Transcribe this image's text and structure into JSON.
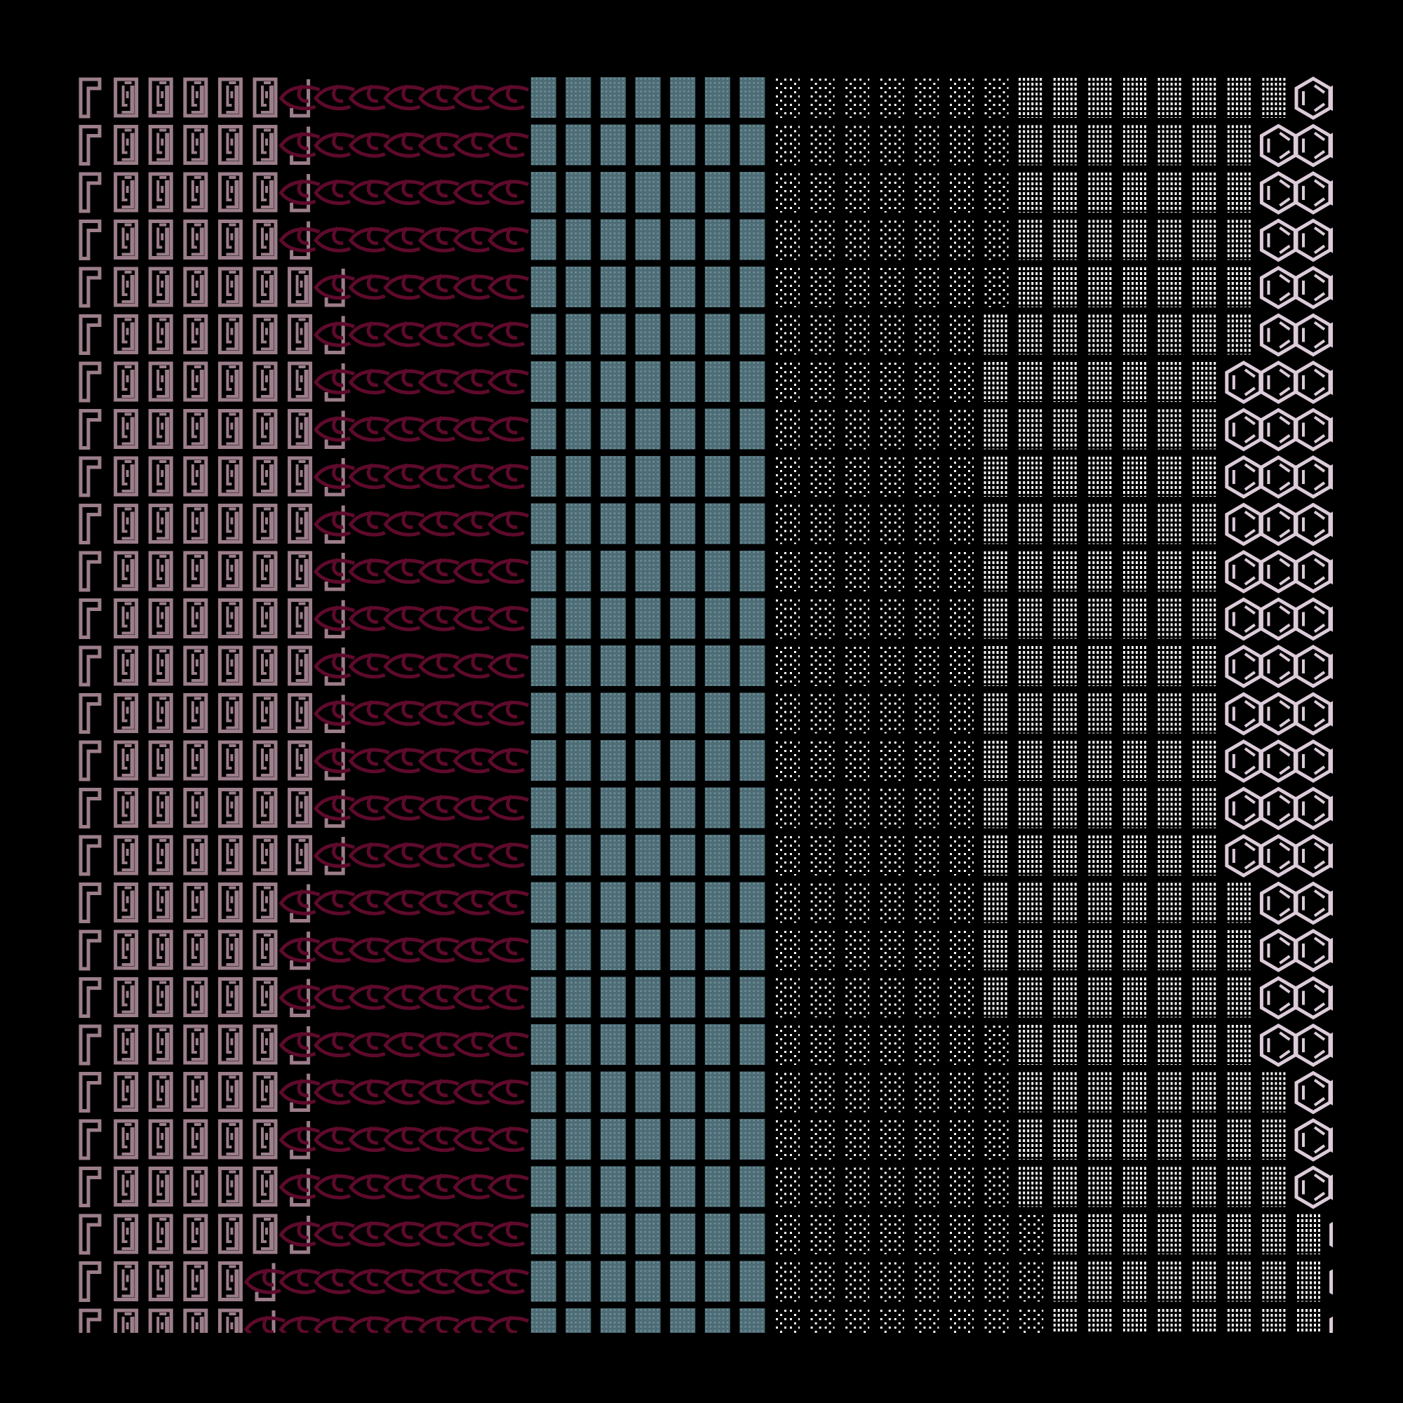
{
  "palette": {
    "background": "#000000",
    "frame_glyph": "#9c7e8b",
    "eye_glyph": "#5e0a2c",
    "teal_tile": "#4d6c76",
    "teal_dot": "#6f9097",
    "dot_glyph": "#ffffff",
    "hex_glyph": "#dccbd9"
  },
  "glyph_types": [
    "corner-frame",
    "maze-box",
    "hook",
    "eye",
    "teal-dotted-tile",
    "sparse-dots",
    "dense-dots",
    "hexagon"
  ],
  "grid": {
    "columns": 37,
    "teal_columns": 7,
    "rows": [
      {
        "boxes": 5,
        "sparse": 7,
        "hex_start": 35
      },
      {
        "boxes": 5,
        "sparse": 7,
        "hex_start": 34
      },
      {
        "boxes": 5,
        "sparse": 7,
        "hex_start": 34
      },
      {
        "boxes": 5,
        "sparse": 7,
        "hex_start": 34
      },
      {
        "boxes": 6,
        "sparse": 7,
        "hex_start": 34
      },
      {
        "boxes": 6,
        "sparse": 6,
        "hex_start": 34
      },
      {
        "boxes": 6,
        "sparse": 6,
        "hex_start": 33
      },
      {
        "boxes": 6,
        "sparse": 6,
        "hex_start": 33
      },
      {
        "boxes": 6,
        "sparse": 6,
        "hex_start": 33
      },
      {
        "boxes": 6,
        "sparse": 6,
        "hex_start": 33
      },
      {
        "boxes": 6,
        "sparse": 6,
        "hex_start": 33
      },
      {
        "boxes": 6,
        "sparse": 6,
        "hex_start": 33
      },
      {
        "boxes": 6,
        "sparse": 6,
        "hex_start": 33
      },
      {
        "boxes": 6,
        "sparse": 6,
        "hex_start": 33
      },
      {
        "boxes": 6,
        "sparse": 6,
        "hex_start": 33
      },
      {
        "boxes": 6,
        "sparse": 6,
        "hex_start": 33
      },
      {
        "boxes": 6,
        "sparse": 6,
        "hex_start": 33
      },
      {
        "boxes": 5,
        "sparse": 6,
        "hex_start": 34
      },
      {
        "boxes": 5,
        "sparse": 6,
        "hex_start": 34
      },
      {
        "boxes": 5,
        "sparse": 6,
        "hex_start": 34
      },
      {
        "boxes": 5,
        "sparse": 7,
        "hex_start": 34
      },
      {
        "boxes": 5,
        "sparse": 7,
        "hex_start": 35
      },
      {
        "boxes": 5,
        "sparse": 7,
        "hex_start": 35
      },
      {
        "boxes": 5,
        "sparse": 7,
        "hex_start": 35
      },
      {
        "boxes": 5,
        "sparse": 8,
        "hex_start": 36
      },
      {
        "boxes": 4,
        "sparse": 8,
        "hex_start": 36
      },
      {
        "boxes": 4,
        "sparse": 8,
        "hex_start": 36
      }
    ]
  }
}
